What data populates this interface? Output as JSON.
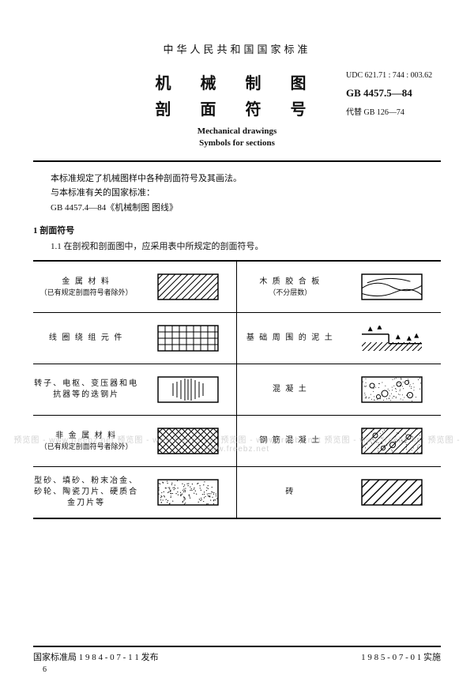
{
  "header": {
    "country_std": "中华人民共和国国家标准",
    "title_cn_line1": "机 械 制 图",
    "title_cn_line2": "剖 面 符 号",
    "title_en_line1": "Mechanical drawings",
    "title_en_line2": "Symbols for sections",
    "udc": "UDC 621.71 : 744 : 003.62",
    "gb": "GB 4457.5—84",
    "replaces": "代替 GB 126—74"
  },
  "intro": {
    "p1": "本标准规定了机械图样中各种剖面符号及其画法。",
    "p2": "与本标准有关的国家标准：",
    "p3": "GB 4457.4—84《机械制图  图线》"
  },
  "section": {
    "num": "1  剖面符号",
    "clause": "1.1  在剖视和剖面图中，应采用表中所规定的剖面符号。"
  },
  "table": {
    "rows": [
      {
        "left_label_main": "金 属 材 料",
        "left_label_paren": "（已有规定剖面符号者除外）",
        "left_symbol": "hatch45",
        "right_label_main": "木 质 胶 合 板",
        "right_label_paren": "（不分层数）",
        "right_symbol": "plywood"
      },
      {
        "left_label_main": "线 圈 绕 组 元 件",
        "left_label_paren": "",
        "left_symbol": "grid",
        "right_label_main": "基 础 周 围 的 泥 土",
        "right_label_paren": "",
        "right_symbol": "earth"
      },
      {
        "left_label_main": "转子、电枢、变压器和电抗器等的迭钢片",
        "left_label_paren": "",
        "left_symbol": "verticalGroups",
        "right_label_main": "混  凝  土",
        "right_label_paren": "",
        "right_symbol": "concrete"
      },
      {
        "left_label_main": "非 金 属 材 料",
        "left_label_paren": "（已有规定剖面符号者除外）",
        "left_symbol": "crosshatch",
        "right_label_main": "钢 筋 混 凝 土",
        "right_label_paren": "",
        "right_symbol": "rebarConcrete"
      },
      {
        "left_label_main": "型砂、填砂、粉末冶金、砂轮、陶瓷刀片、硬质合金刀片等",
        "left_label_paren": "",
        "left_symbol": "stipple",
        "right_label_main": "砖",
        "right_label_paren": "",
        "right_symbol": "hatch45wide"
      }
    ],
    "col_widths": [
      "26%",
      "24%",
      "26%",
      "24%"
    ],
    "symbol_box": {
      "w": 78,
      "h": 34,
      "stroke": "#000000",
      "stroke_width": 1.2,
      "fill": "#ffffff"
    }
  },
  "footer": {
    "issued": "国家标准局 1 9 8 4 - 0 7 - 1 1 发布",
    "effective": "1 9 8 5 - 0 7 - 0 1 实施",
    "page": "6"
  },
  "watermark": "预览图 - www.freebz.net   预览图 - www.freebz.net   预览图 - www.freebz.net   预览图 - www.freebz.net   预览图 - www.freebz.net"
}
